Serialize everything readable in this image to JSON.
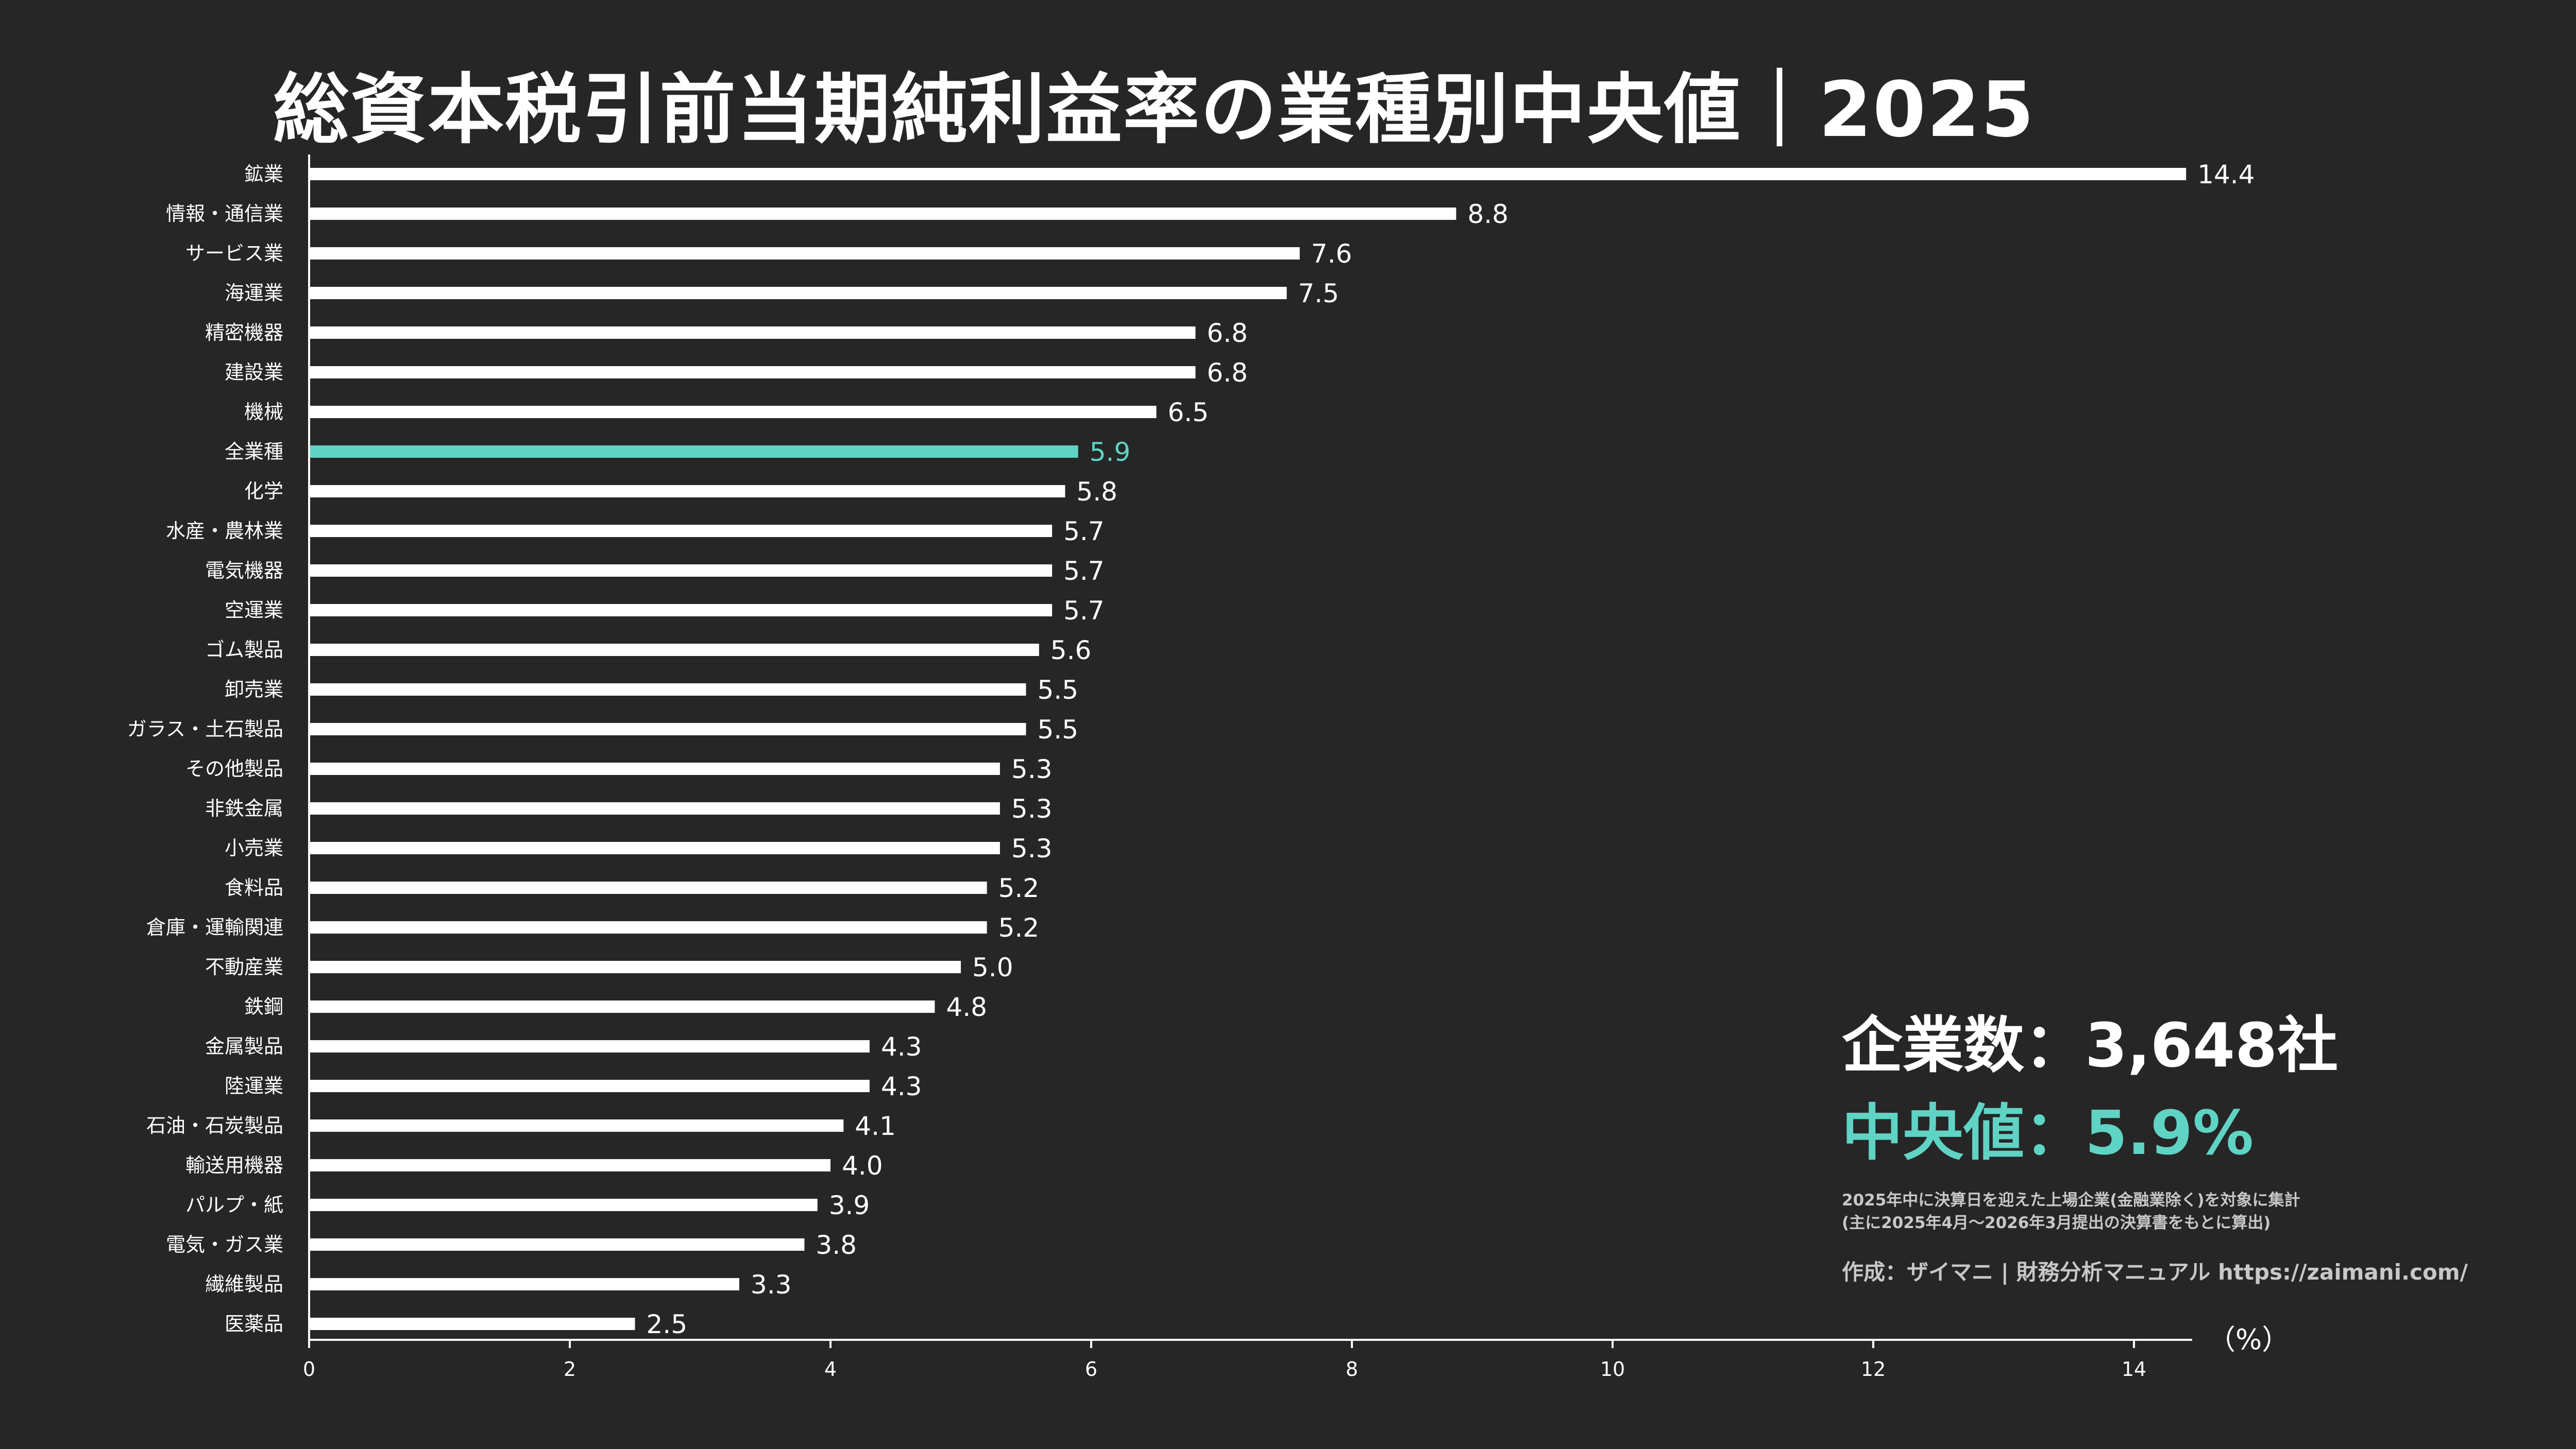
{
  "chart_data": {
    "type": "bar",
    "orientation": "horizontal",
    "title": "総資本税引前当期純利益率の業種別中央値｜2025",
    "unit_label": "（%）",
    "xlim": [
      0,
      14.5
    ],
    "xticks": [
      0,
      2,
      4,
      6,
      8,
      10,
      12,
      14
    ],
    "categories": [
      "鉱業",
      "情報・通信業",
      "サービス業",
      "海運業",
      "精密機器",
      "建設業",
      "機械",
      "全業種",
      "化学",
      "水産・農林業",
      "電気機器",
      "空運業",
      "ゴム製品",
      "卸売業",
      "ガラス・土石製品",
      "その他製品",
      "非鉄金属",
      "小売業",
      "食料品",
      "倉庫・運輸関連",
      "不動産業",
      "鉄鋼",
      "金属製品",
      "陸運業",
      "石油・石炭製品",
      "輸送用機器",
      "パルプ・紙",
      "電気・ガス業",
      "繊維製品",
      "医薬品"
    ],
    "values": [
      14.4,
      8.8,
      7.6,
      7.5,
      6.8,
      6.8,
      6.5,
      5.9,
      5.8,
      5.7,
      5.7,
      5.7,
      5.6,
      5.5,
      5.5,
      5.3,
      5.3,
      5.3,
      5.2,
      5.2,
      5.0,
      4.8,
      4.3,
      4.3,
      4.1,
      4.0,
      3.9,
      3.8,
      3.3,
      2.5
    ],
    "value_labels": [
      "14.4",
      "8.8",
      "7.6",
      "7.5",
      "6.8",
      "6.8",
      "6.5",
      "5.9",
      "5.8",
      "5.7",
      "5.7",
      "5.7",
      "5.6",
      "5.5",
      "5.5",
      "5.3",
      "5.3",
      "5.3",
      "5.2",
      "5.2",
      "5.0",
      "4.8",
      "4.3",
      "4.3",
      "4.1",
      "4.0",
      "3.9",
      "3.8",
      "3.3",
      "2.5"
    ],
    "highlight_category": "全業種",
    "colors": {
      "bar": "#ffffff",
      "highlight": "#5fd3c4",
      "background": "#262626"
    },
    "grid": false
  },
  "stats": {
    "company_count": "企業数：3,648社",
    "median": "中央値：5.9%"
  },
  "notes": {
    "line1": "2025年中に決算日を迎えた上場企業(金融業除く)を対象に集計",
    "line2": "(主に2025年4月～2026年3月提出の決算書をもとに算出)"
  },
  "credit": "作成：ザイマニ | 財務分析マニュアル https://zaimani.com/"
}
